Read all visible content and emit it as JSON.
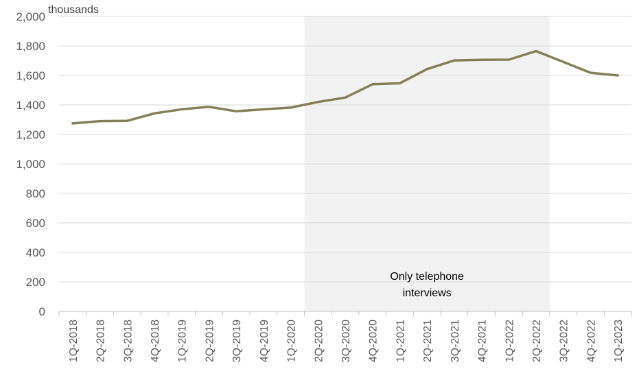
{
  "chart_data": {
    "type": "line",
    "title": "",
    "xlabel": "",
    "ylabel": "",
    "y_unit": "thousands",
    "ylim": [
      0,
      2000
    ],
    "y_ticks": [
      0,
      200,
      400,
      600,
      800,
      1000,
      1200,
      1400,
      1600,
      1800,
      2000
    ],
    "y_tick_labels": [
      "0",
      "200",
      "400",
      "600",
      "800",
      "1,000",
      "1,200",
      "1,400",
      "1,600",
      "1,800",
      "2,000"
    ],
    "grid": true,
    "legend": "none",
    "categories": [
      "1Q-2018",
      "2Q-2018",
      "3Q-2018",
      "4Q-2018",
      "1Q-2019",
      "2Q-2019",
      "3Q-2019",
      "4Q-2019",
      "1Q-2020",
      "2Q-2020",
      "3Q-2020",
      "4Q-2020",
      "1Q-2021",
      "2Q-2021",
      "3Q-2021",
      "4Q-2021",
      "1Q-2022",
      "2Q-2022",
      "3Q-2022",
      "4Q-2022",
      "1Q-2023"
    ],
    "series": [
      {
        "color": "#857F57",
        "values": [
          1275,
          1290,
          1292,
          1343,
          1370,
          1387,
          1357,
          1370,
          1382,
          1420,
          1450,
          1540,
          1547,
          1643,
          1702,
          1706,
          1707,
          1765,
          1692,
          1618,
          1600
        ]
      }
    ],
    "shaded_region": {
      "from": "2Q-2020",
      "to": "2Q-2022",
      "color": "#F2F2F2",
      "annotation_line1": "Only telephone",
      "annotation_line2": "interviews"
    }
  }
}
